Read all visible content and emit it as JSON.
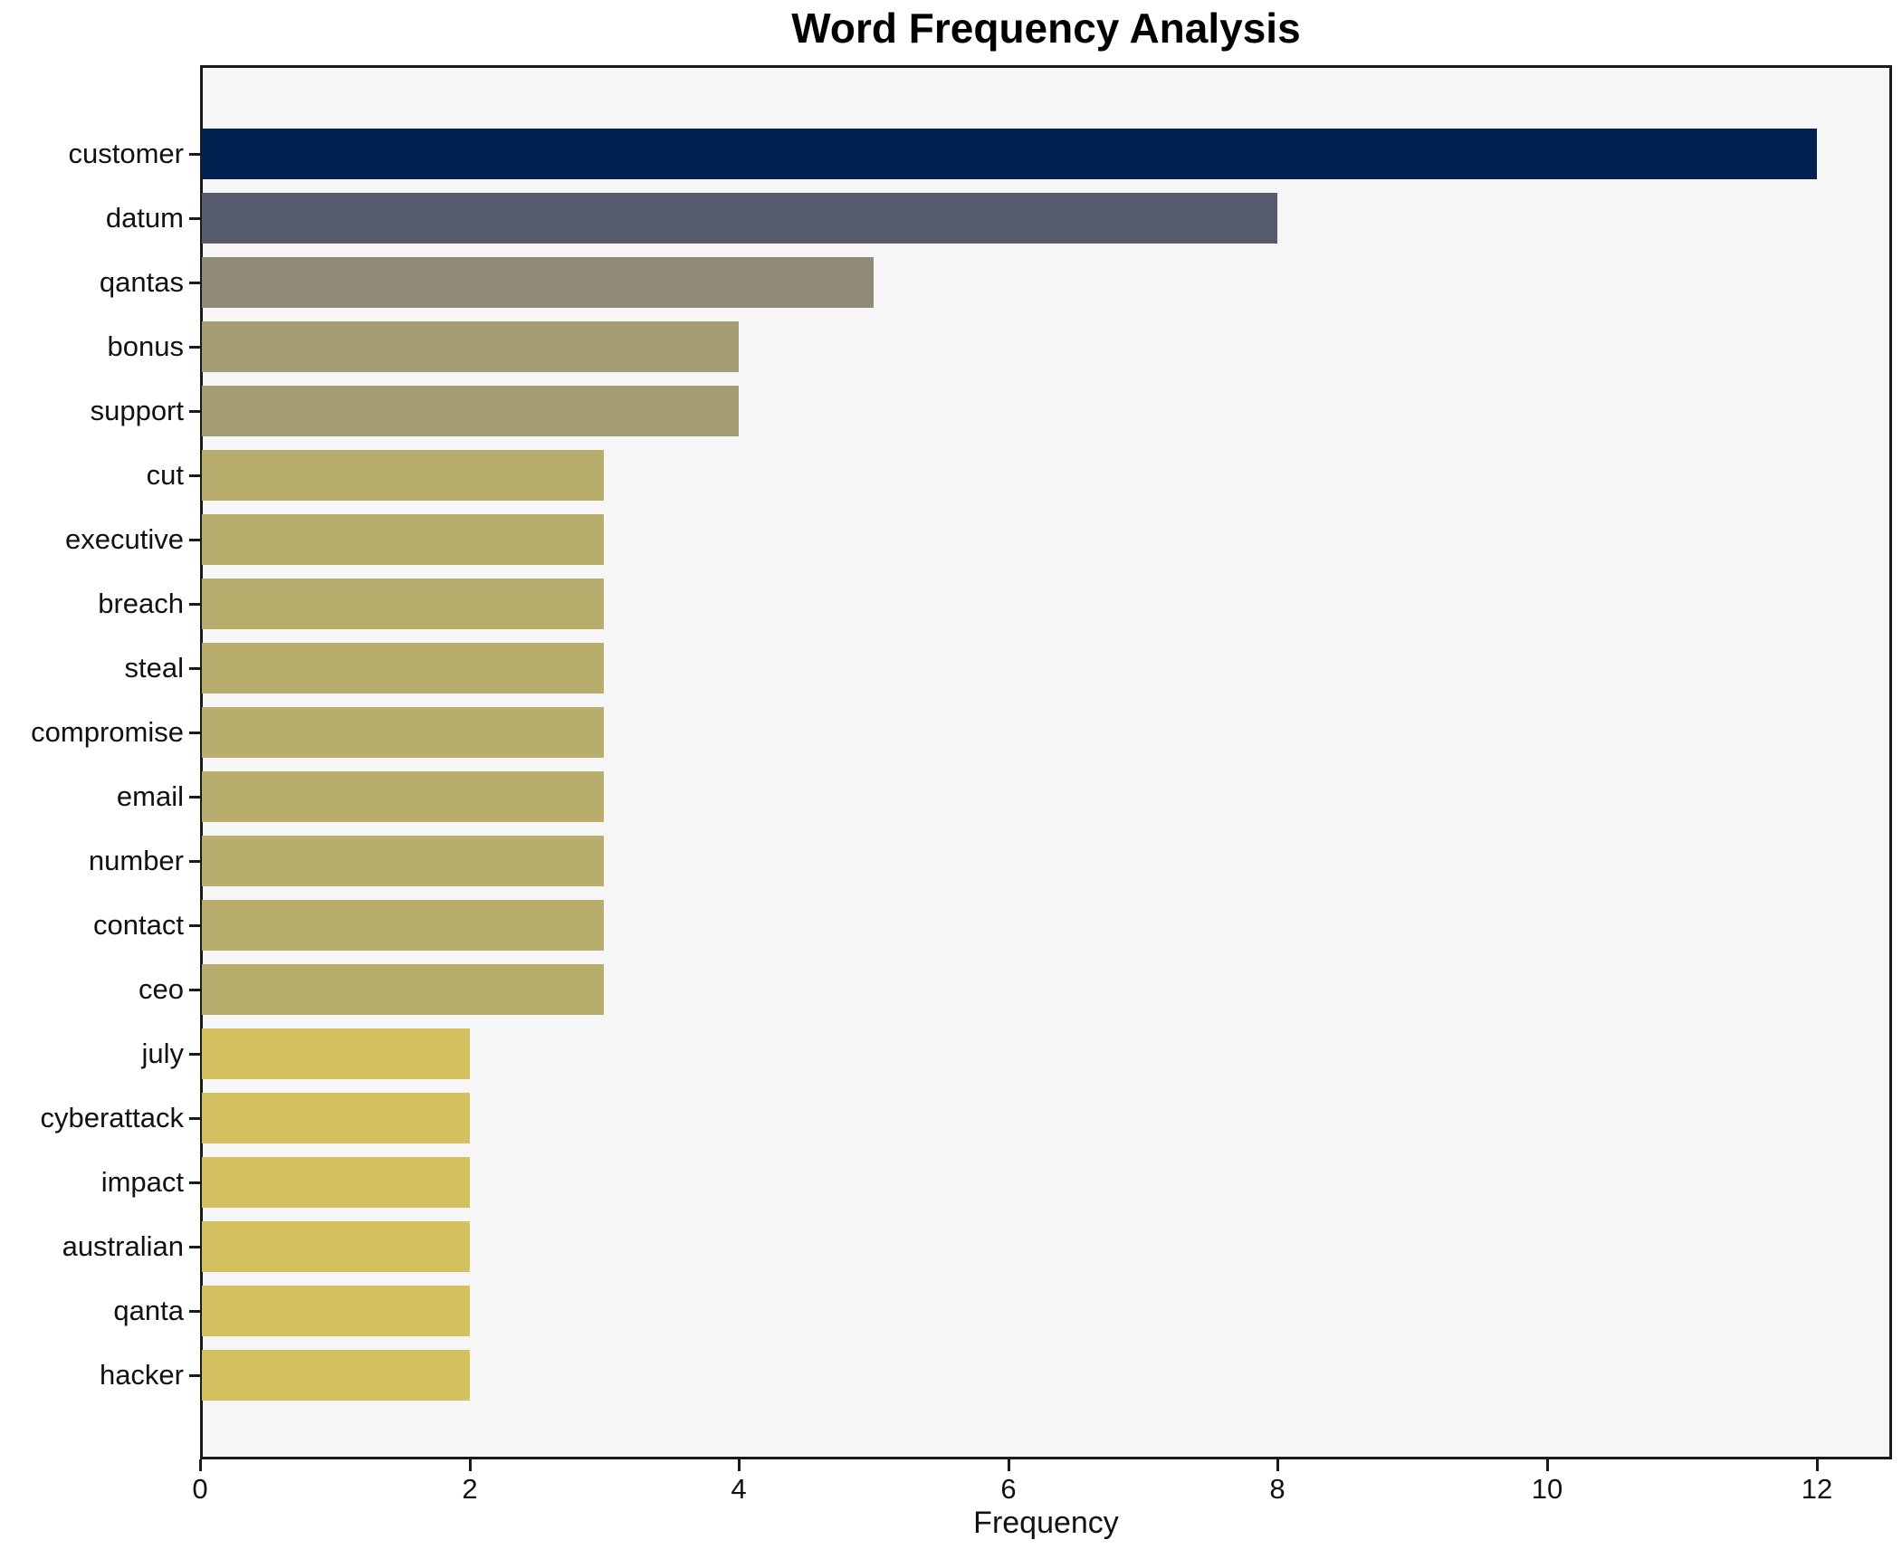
{
  "chart_data": {
    "type": "bar",
    "orientation": "horizontal",
    "title": "Word Frequency Analysis",
    "xlabel": "Frequency",
    "ylabel": "",
    "categories": [
      "customer",
      "datum",
      "qantas",
      "bonus",
      "support",
      "cut",
      "executive",
      "breach",
      "steal",
      "compromise",
      "email",
      "number",
      "contact",
      "ceo",
      "july",
      "cyberattack",
      "impact",
      "australian",
      "qanta",
      "hacker"
    ],
    "values": [
      12,
      8,
      5,
      4,
      4,
      3,
      3,
      3,
      3,
      3,
      3,
      3,
      3,
      3,
      2,
      2,
      2,
      2,
      2,
      2
    ],
    "bar_colors": [
      "#012250",
      "#565c6e",
      "#908a79",
      "#a49c72",
      "#a49c72",
      "#b8ad6d",
      "#b8ad6d",
      "#b8ad6d",
      "#b8ad6d",
      "#b8ad6d",
      "#b8ad6d",
      "#b8ad6d",
      "#b8ad6d",
      "#b8ad6d",
      "#d3c05f",
      "#d3c05f",
      "#d3c05f",
      "#d3c05f",
      "#d3c05f",
      "#d3c05f"
    ],
    "x_ticks": [
      0,
      2,
      4,
      6,
      8,
      10,
      12
    ],
    "xlim": [
      0,
      12.56
    ],
    "grid": false,
    "legend": null,
    "plot_background": "#f6f6f7",
    "figure_background": "#ffffff",
    "spine_color": "#1a1a1a",
    "text_color": "#111111"
  }
}
